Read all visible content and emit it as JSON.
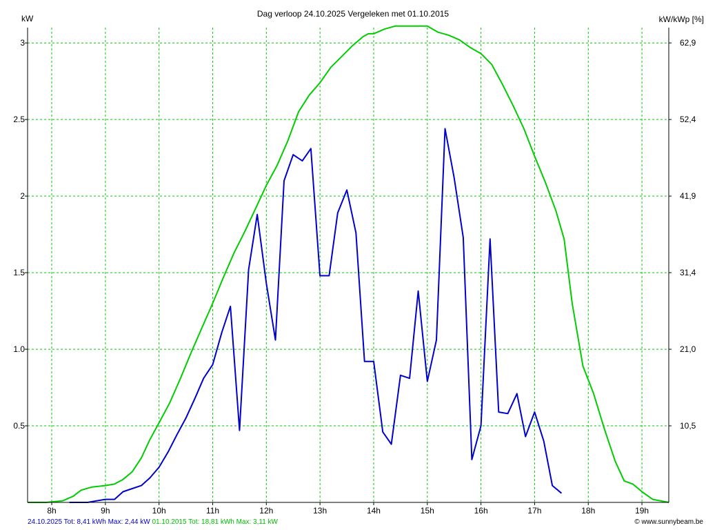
{
  "chart_data": {
    "type": "line",
    "title": "Dag  verloop 24.10.2025   Vergeleken met 01.10.2015",
    "ylabel_left": "kW",
    "ylabel_right": "kW/kWp [%]",
    "xlim": [
      7.55,
      19.5
    ],
    "ylim": [
      0,
      3.1
    ],
    "x_ticks": [
      8,
      9,
      10,
      11,
      12,
      13,
      14,
      15,
      16,
      17,
      18,
      19
    ],
    "x_tick_labels": [
      "8h",
      "9h",
      "10h",
      "11h",
      "12h",
      "13h",
      "14h",
      "15h",
      "16h",
      "17h",
      "18h",
      "19h"
    ],
    "y_ticks": [
      0.5,
      1.0,
      1.5,
      2.0,
      2.5,
      3.0
    ],
    "y_tick_labels": [
      "0.5",
      "1.0",
      "1.5",
      "2",
      "2.5",
      "3"
    ],
    "y2_tick_labels": [
      "10,5",
      "21,0",
      "31,4",
      "41,9",
      "52,4",
      "62,9"
    ],
    "grid": true,
    "series": [
      {
        "name": "24.10.2025",
        "color": "#0000cc",
        "x": [
          8.33,
          8.5,
          8.67,
          8.83,
          9.0,
          9.17,
          9.33,
          9.5,
          9.67,
          9.83,
          10.0,
          10.17,
          10.33,
          10.5,
          10.67,
          10.83,
          11.0,
          11.17,
          11.33,
          11.5,
          11.67,
          11.83,
          12.0,
          12.17,
          12.33,
          12.5,
          12.67,
          12.83,
          13.0,
          13.17,
          13.33,
          13.5,
          13.67,
          13.83,
          14.0,
          14.17,
          14.33,
          14.5,
          14.67,
          14.83,
          15.0,
          15.17,
          15.33,
          15.5,
          15.67,
          15.83,
          16.0,
          16.17,
          16.33,
          16.5,
          16.67,
          16.83,
          17.0,
          17.17,
          17.33,
          17.5
        ],
        "y": [
          0.0,
          0.0,
          0.0,
          0.01,
          0.02,
          0.02,
          0.07,
          0.09,
          0.11,
          0.16,
          0.23,
          0.33,
          0.44,
          0.55,
          0.68,
          0.81,
          0.9,
          1.11,
          1.28,
          0.47,
          1.52,
          1.88,
          1.43,
          1.06,
          2.1,
          2.27,
          2.23,
          2.31,
          1.48,
          1.48,
          1.89,
          2.04,
          1.76,
          0.92,
          0.92,
          0.46,
          0.38,
          0.83,
          0.81,
          1.38,
          0.79,
          1.06,
          2.44,
          2.12,
          1.73,
          0.28,
          0.5,
          1.72,
          0.59,
          0.58,
          0.71,
          0.43,
          0.59,
          0.4,
          0.11,
          0.06
        ]
      },
      {
        "name": "01.10.2015",
        "color": "#00cc00",
        "x": [
          7.55,
          7.9,
          8.2,
          8.4,
          8.55,
          8.75,
          9.0,
          9.17,
          9.33,
          9.5,
          9.67,
          9.83,
          10.0,
          10.2,
          10.4,
          10.6,
          10.8,
          11.0,
          11.2,
          11.4,
          11.6,
          11.8,
          12.0,
          12.2,
          12.4,
          12.6,
          12.8,
          13.0,
          13.2,
          13.4,
          13.6,
          13.8,
          13.9,
          14.0,
          14.2,
          14.4,
          14.6,
          14.8,
          15.0,
          15.2,
          15.4,
          15.6,
          15.8,
          16.0,
          16.2,
          16.4,
          16.6,
          16.8,
          17.0,
          17.2,
          17.4,
          17.55,
          17.7,
          17.9,
          18.1,
          18.3,
          18.5,
          18.67,
          18.83,
          19.0,
          19.2,
          19.5
        ],
        "y": [
          0.0,
          0.0,
          0.01,
          0.04,
          0.08,
          0.1,
          0.11,
          0.12,
          0.15,
          0.2,
          0.29,
          0.41,
          0.52,
          0.65,
          0.81,
          0.98,
          1.14,
          1.3,
          1.47,
          1.63,
          1.77,
          1.92,
          2.07,
          2.2,
          2.36,
          2.55,
          2.66,
          2.74,
          2.84,
          2.91,
          2.98,
          3.04,
          3.06,
          3.06,
          3.09,
          3.11,
          3.11,
          3.11,
          3.11,
          3.07,
          3.05,
          3.02,
          2.97,
          2.93,
          2.86,
          2.73,
          2.59,
          2.44,
          2.26,
          2.09,
          1.9,
          1.72,
          1.3,
          0.89,
          0.71,
          0.48,
          0.27,
          0.14,
          0.12,
          0.07,
          0.02,
          0.0
        ]
      }
    ]
  },
  "footer": {
    "series1_text": "24.10.2025 Tot: 8,41 kWh Max: 2,44 kW",
    "series2_text": " 01.10.2015 Tot: 18,81 kWh Max: 3,11 kW",
    "credit": "© www.sunnybeam.be"
  }
}
